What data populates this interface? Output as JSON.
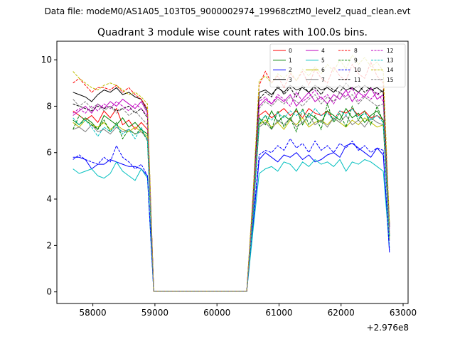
{
  "chart_data": {
    "type": "line",
    "suptitle": "Data file: modeM0/AS1A05_103T05_9000002974_19968cztM0_level2_quad_clean.evt",
    "title": "Quadrant 3 module wise count rates with 100.0s bins.",
    "xlabel": "",
    "ylabel": "",
    "offset_label": "+2.976e8",
    "xlim": [
      57420,
      63080
    ],
    "ylim": [
      -0.5,
      10.8
    ],
    "xticks": [
      58000,
      59000,
      60000,
      61000,
      62000,
      63000
    ],
    "xtick_labels": [
      "58000",
      "59000",
      "60000",
      "61000",
      "62000",
      "63000"
    ],
    "yticks": [
      0,
      2,
      4,
      6,
      8,
      10
    ],
    "ytick_labels": [
      "0",
      "2",
      "4",
      "6",
      "8",
      "10"
    ],
    "grid": false,
    "legend_placement": "top-right",
    "legend_columns": 4,
    "x": [
      57680,
      57780,
      57880,
      57980,
      58080,
      58180,
      58280,
      58380,
      58480,
      58580,
      58680,
      58780,
      58880,
      58980,
      59080,
      59180,
      59280,
      59380,
      59480,
      59580,
      59680,
      59780,
      59880,
      59980,
      60080,
      60180,
      60280,
      60380,
      60480,
      60580,
      60680,
      60780,
      60880,
      60980,
      61080,
      61180,
      61280,
      61380,
      61480,
      61580,
      61680,
      61780,
      61880,
      61980,
      62080,
      62180,
      62280,
      62380,
      62480,
      62580,
      62680,
      62780
    ],
    "series": [
      {
        "name": "0",
        "color": "#ff0000",
        "dash": "solid",
        "values": [
          7.8,
          7.6,
          7.4,
          7.6,
          7.3,
          7.8,
          7.5,
          7.9,
          7.2,
          7.4,
          7.0,
          7.3,
          7.0,
          0.03,
          0.03,
          0.03,
          0.03,
          0.03,
          0.03,
          0.03,
          0.03,
          0.03,
          0.03,
          0.03,
          0.03,
          0.03,
          0.03,
          0.03,
          0.03,
          3.5,
          7.6,
          7.8,
          7.5,
          7.7,
          7.9,
          7.6,
          7.8,
          7.5,
          7.9,
          7.7,
          7.6,
          7.8,
          7.4,
          7.8,
          7.7,
          7.9,
          7.6,
          7.8,
          7.5,
          7.6,
          7.4,
          2.5
        ]
      },
      {
        "name": "1",
        "color": "#008000",
        "dash": "solid",
        "values": [
          7.4,
          7.2,
          7.5,
          7.3,
          7.0,
          7.6,
          7.4,
          7.2,
          7.5,
          7.1,
          7.3,
          7.0,
          6.8,
          0.03,
          0.03,
          0.03,
          0.03,
          0.03,
          0.03,
          0.03,
          0.03,
          0.03,
          0.03,
          0.03,
          0.03,
          0.03,
          0.03,
          0.03,
          0.03,
          3.4,
          7.5,
          7.2,
          7.8,
          7.3,
          7.6,
          7.4,
          7.9,
          7.2,
          7.7,
          7.5,
          7.3,
          7.8,
          7.6,
          7.4,
          7.9,
          7.5,
          7.7,
          7.3,
          7.6,
          7.8,
          7.4,
          2.4
        ]
      },
      {
        "name": "2",
        "color": "#0000ff",
        "dash": "solid",
        "values": [
          5.8,
          5.8,
          5.7,
          5.3,
          5.5,
          5.5,
          5.7,
          5.6,
          5.5,
          5.4,
          5.4,
          5.3,
          5.0,
          0.03,
          0.03,
          0.03,
          0.03,
          0.03,
          0.03,
          0.03,
          0.03,
          0.03,
          0.03,
          0.03,
          0.03,
          0.03,
          0.03,
          0.03,
          0.03,
          2.8,
          5.7,
          6.0,
          5.8,
          5.6,
          5.9,
          5.8,
          6.0,
          5.7,
          5.9,
          5.6,
          5.7,
          5.9,
          6.0,
          5.8,
          6.3,
          6.4,
          6.2,
          6.0,
          5.8,
          6.2,
          5.9,
          1.7
        ]
      },
      {
        "name": "3",
        "color": "#000000",
        "dash": "solid",
        "values": [
          8.6,
          8.5,
          8.4,
          8.2,
          8.5,
          8.7,
          8.6,
          8.8,
          8.5,
          8.6,
          8.4,
          8.3,
          7.8,
          0.03,
          0.03,
          0.03,
          0.03,
          0.03,
          0.03,
          0.03,
          0.03,
          0.03,
          0.03,
          0.03,
          0.03,
          0.03,
          0.03,
          0.03,
          0.03,
          4.0,
          8.6,
          8.7,
          8.5,
          8.8,
          8.6,
          8.9,
          8.7,
          8.8,
          8.6,
          8.9,
          8.7,
          8.8,
          8.6,
          8.9,
          8.7,
          8.8,
          8.6,
          8.9,
          8.7,
          8.8,
          8.6,
          2.9
        ]
      },
      {
        "name": "4",
        "color": "#bf00bf",
        "dash": "solid",
        "values": [
          7.6,
          7.8,
          8.0,
          7.7,
          8.1,
          7.9,
          8.2,
          8.0,
          8.3,
          8.1,
          7.9,
          8.2,
          7.7,
          0.03,
          0.03,
          0.03,
          0.03,
          0.03,
          0.03,
          0.03,
          0.03,
          0.03,
          0.03,
          0.03,
          0.03,
          0.03,
          0.03,
          0.03,
          0.03,
          3.8,
          8.0,
          8.3,
          8.1,
          8.4,
          8.2,
          8.5,
          8.0,
          8.3,
          8.6,
          8.2,
          8.4,
          8.1,
          8.5,
          8.3,
          8.7,
          8.2,
          8.6,
          8.4,
          8.8,
          8.3,
          8.5,
          2.8
        ]
      },
      {
        "name": "5",
        "color": "#00bfbf",
        "dash": "solid",
        "values": [
          5.3,
          5.1,
          5.2,
          5.3,
          5.0,
          4.9,
          5.1,
          5.6,
          5.2,
          5.0,
          4.8,
          5.3,
          4.9,
          0.03,
          0.03,
          0.03,
          0.03,
          0.03,
          0.03,
          0.03,
          0.03,
          0.03,
          0.03,
          0.03,
          0.03,
          0.03,
          0.03,
          0.03,
          0.03,
          2.6,
          5.1,
          5.3,
          5.4,
          5.2,
          5.6,
          5.5,
          5.2,
          5.6,
          5.4,
          5.7,
          5.5,
          5.6,
          5.4,
          5.7,
          5.2,
          5.6,
          5.5,
          5.7,
          5.6,
          5.4,
          5.2,
          1.9
        ]
      },
      {
        "name": "6",
        "color": "#bfbf00",
        "dash": "solid",
        "values": [
          7.3,
          7.1,
          7.4,
          7.2,
          7.1,
          7.3,
          7.0,
          7.2,
          7.0,
          6.9,
          7.1,
          6.9,
          6.7,
          0.03,
          0.03,
          0.03,
          0.03,
          0.03,
          0.03,
          0.03,
          0.03,
          0.03,
          0.03,
          0.03,
          0.03,
          0.03,
          0.03,
          0.03,
          0.03,
          3.3,
          7.2,
          7.4,
          7.1,
          7.3,
          7.0,
          7.4,
          7.2,
          7.5,
          7.1,
          7.3,
          7.4,
          7.2,
          7.5,
          7.3,
          7.1,
          7.4,
          7.2,
          7.5,
          7.3,
          7.1,
          7.2,
          2.3
        ]
      },
      {
        "name": "7",
        "color": "#808080",
        "dash": "solid",
        "values": [
          7.0,
          7.1,
          6.9,
          7.2,
          6.9,
          7.0,
          6.8,
          7.1,
          6.9,
          7.0,
          6.8,
          6.9,
          6.6,
          0.03,
          0.03,
          0.03,
          0.03,
          0.03,
          0.03,
          0.03,
          0.03,
          0.03,
          0.03,
          0.03,
          0.03,
          0.03,
          0.03,
          0.03,
          0.03,
          3.3,
          7.1,
          7.3,
          7.0,
          7.4,
          7.2,
          7.5,
          7.1,
          7.3,
          7.6,
          7.2,
          7.4,
          7.1,
          7.5,
          7.3,
          7.6,
          7.2,
          7.4,
          7.1,
          7.5,
          7.3,
          7.2,
          2.2
        ]
      },
      {
        "name": "8",
        "color": "#ff0000",
        "dash": "dashed",
        "values": [
          9.0,
          9.2,
          8.9,
          8.6,
          8.8,
          8.8,
          8.7,
          8.9,
          8.6,
          8.8,
          8.5,
          8.3,
          7.9,
          0.03,
          0.03,
          0.03,
          0.03,
          0.03,
          0.03,
          0.03,
          0.03,
          0.03,
          0.03,
          0.03,
          0.03,
          0.03,
          0.03,
          0.03,
          0.03,
          4.1,
          8.9,
          9.5,
          9.0,
          9.3,
          8.8,
          9.4,
          9.1,
          9.5,
          8.9,
          9.6,
          9.2,
          9.0,
          9.7,
          9.3,
          9.1,
          9.8,
          9.4,
          9.2,
          9.9,
          9.3,
          9.0,
          2.9
        ]
      },
      {
        "name": "9",
        "color": "#008000",
        "dash": "dashed",
        "values": [
          7.0,
          7.6,
          7.4,
          7.2,
          7.0,
          7.4,
          6.9,
          7.3,
          6.6,
          7.0,
          6.8,
          7.0,
          6.5,
          0.03,
          0.03,
          0.03,
          0.03,
          0.03,
          0.03,
          0.03,
          0.03,
          0.03,
          0.03,
          0.03,
          0.03,
          0.03,
          0.03,
          0.03,
          0.03,
          3.2,
          7.2,
          7.6,
          7.0,
          7.8,
          7.1,
          7.5,
          6.9,
          7.9,
          7.2,
          7.6,
          7.0,
          8.1,
          7.3,
          7.7,
          7.1,
          8.0,
          7.4,
          7.8,
          7.2,
          8.0,
          7.3,
          2.4
        ]
      },
      {
        "name": "10",
        "color": "#0000ff",
        "dash": "dashed",
        "values": [
          5.7,
          5.9,
          5.7,
          5.6,
          5.5,
          5.8,
          5.6,
          6.3,
          5.8,
          5.6,
          5.3,
          5.5,
          5.0,
          0.03,
          0.03,
          0.03,
          0.03,
          0.03,
          0.03,
          0.03,
          0.03,
          0.03,
          0.03,
          0.03,
          0.03,
          0.03,
          0.03,
          0.03,
          0.03,
          3.0,
          5.9,
          6.1,
          6.0,
          6.3,
          6.1,
          6.6,
          6.2,
          6.4,
          6.0,
          6.5,
          6.1,
          6.3,
          6.0,
          6.4,
          6.2,
          6.5,
          6.1,
          6.3,
          6.0,
          6.2,
          6.1,
          1.8
        ]
      },
      {
        "name": "11",
        "color": "#000000",
        "dash": "dashed",
        "values": [
          8.1,
          8.0,
          7.9,
          7.8,
          8.0,
          7.9,
          8.0,
          7.8,
          7.9,
          8.0,
          7.7,
          7.9,
          7.5,
          0.03,
          0.03,
          0.03,
          0.03,
          0.03,
          0.03,
          0.03,
          0.03,
          0.03,
          0.03,
          0.03,
          0.03,
          0.03,
          0.03,
          0.03,
          0.03,
          3.9,
          8.3,
          8.6,
          8.4,
          8.9,
          8.5,
          8.8,
          8.4,
          8.9,
          8.6,
          8.8,
          8.5,
          8.9,
          8.7,
          8.6,
          9.0,
          8.7,
          8.9,
          8.6,
          8.8,
          8.5,
          8.7,
          2.8
        ]
      },
      {
        "name": "12",
        "color": "#bf00bf",
        "dash": "dashed",
        "values": [
          7.7,
          7.9,
          7.7,
          8.0,
          7.8,
          8.1,
          7.9,
          8.2,
          8.0,
          7.8,
          8.1,
          7.9,
          7.6,
          0.03,
          0.03,
          0.03,
          0.03,
          0.03,
          0.03,
          0.03,
          0.03,
          0.03,
          0.03,
          0.03,
          0.03,
          0.03,
          0.03,
          0.03,
          0.03,
          3.7,
          8.2,
          8.4,
          8.1,
          8.5,
          8.3,
          8.0,
          8.6,
          8.2,
          8.4,
          8.7,
          8.3,
          8.5,
          8.1,
          8.6,
          8.4,
          8.8,
          8.2,
          8.5,
          8.3,
          8.6,
          8.2,
          2.7
        ]
      },
      {
        "name": "13",
        "color": "#00bfbf",
        "dash": "dashed",
        "values": [
          7.5,
          7.2,
          7.4,
          7.1,
          6.7,
          7.1,
          6.9,
          7.2,
          6.8,
          7.0,
          6.6,
          7.1,
          6.5,
          0.03,
          0.03,
          0.03,
          0.03,
          0.03,
          0.03,
          0.03,
          0.03,
          0.03,
          0.03,
          0.03,
          0.03,
          0.03,
          0.03,
          0.03,
          0.03,
          3.1,
          7.3,
          7.6,
          7.4,
          7.7,
          7.5,
          7.8,
          7.6,
          7.8,
          7.5,
          7.9,
          7.6,
          7.7,
          7.4,
          7.8,
          7.6,
          7.9,
          7.5,
          7.7,
          7.4,
          7.6,
          7.3,
          2.4
        ]
      },
      {
        "name": "14",
        "color": "#bfbf00",
        "dash": "dashed",
        "values": [
          9.5,
          9.2,
          9.0,
          8.8,
          8.7,
          8.9,
          9.0,
          8.9,
          8.7,
          8.5,
          8.6,
          8.4,
          8.1,
          0.03,
          0.03,
          0.03,
          0.03,
          0.03,
          0.03,
          0.03,
          0.03,
          0.03,
          0.03,
          0.03,
          0.03,
          0.03,
          0.03,
          0.03,
          0.03,
          4.2,
          9.1,
          9.3,
          9.0,
          9.4,
          9.2,
          9.5,
          9.1,
          9.6,
          9.3,
          9.7,
          9.4,
          9.8,
          9.5,
          10.0,
          9.6,
          10.2,
          9.8,
          10.1,
          9.7,
          9.9,
          9.5,
          3.0
        ]
      },
      {
        "name": "15",
        "color": "#808080",
        "dash": "dashed",
        "values": [
          8.3,
          8.0,
          8.2,
          7.9,
          8.1,
          7.8,
          8.0,
          7.7,
          7.9,
          7.6,
          7.8,
          7.5,
          7.2,
          0.03,
          0.03,
          0.03,
          0.03,
          0.03,
          0.03,
          0.03,
          0.03,
          0.03,
          0.03,
          0.03,
          0.03,
          0.03,
          0.03,
          0.03,
          0.03,
          3.6,
          7.9,
          8.2,
          8.0,
          8.3,
          8.1,
          8.4,
          8.2,
          8.0,
          8.3,
          8.5,
          8.1,
          8.4,
          8.2,
          8.6,
          8.3,
          8.5,
          8.1,
          8.4,
          8.2,
          8.0,
          8.1,
          2.6
        ]
      }
    ]
  }
}
